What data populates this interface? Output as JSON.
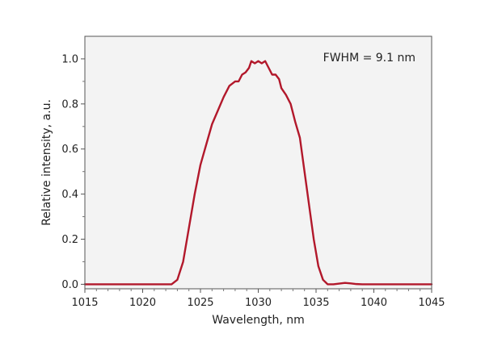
{
  "chart_data": {
    "type": "line",
    "title": "",
    "xlabel": "Wavelength, nm",
    "ylabel": "Relative intensity, a.u.",
    "xlim": [
      1015,
      1045
    ],
    "ylim": [
      -0.02,
      1.1
    ],
    "xticks": [
      "1015",
      "1020",
      "1025",
      "1030",
      "1035",
      "1040",
      "1045"
    ],
    "yticks": [
      "0.0",
      "0.2",
      "0.4",
      "0.6",
      "0.8",
      "1.0"
    ],
    "annotation": "FWHM = 9.1 nm",
    "grid": false,
    "plot_background": "#f3f3f3",
    "series": [
      {
        "color": "#b2182b",
        "x": [
          1015,
          1018,
          1021,
          1022.5,
          1023.0,
          1023.5,
          1024.0,
          1024.5,
          1025.0,
          1025.5,
          1026.0,
          1026.5,
          1027.0,
          1027.5,
          1028.0,
          1028.3,
          1028.6,
          1028.9,
          1029.2,
          1029.4,
          1029.7,
          1030.0,
          1030.3,
          1030.6,
          1030.9,
          1031.2,
          1031.5,
          1031.8,
          1032.0,
          1032.4,
          1032.8,
          1033.2,
          1033.6,
          1034.0,
          1034.4,
          1034.8,
          1035.2,
          1035.6,
          1036.0,
          1036.5,
          1037.0,
          1037.5,
          1038.0,
          1038.5,
          1039.0,
          1042.0,
          1045
        ],
        "y": [
          0.0,
          0.0,
          0.0,
          0.0,
          0.02,
          0.1,
          0.25,
          0.4,
          0.53,
          0.62,
          0.71,
          0.77,
          0.83,
          0.88,
          0.9,
          0.9,
          0.93,
          0.94,
          0.96,
          0.99,
          0.98,
          0.99,
          0.98,
          0.99,
          0.96,
          0.93,
          0.93,
          0.91,
          0.87,
          0.84,
          0.8,
          0.72,
          0.65,
          0.5,
          0.35,
          0.2,
          0.08,
          0.02,
          0.0,
          0.0,
          0.003,
          0.006,
          0.004,
          0.001,
          0.0,
          0.0,
          0.0
        ]
      }
    ]
  }
}
